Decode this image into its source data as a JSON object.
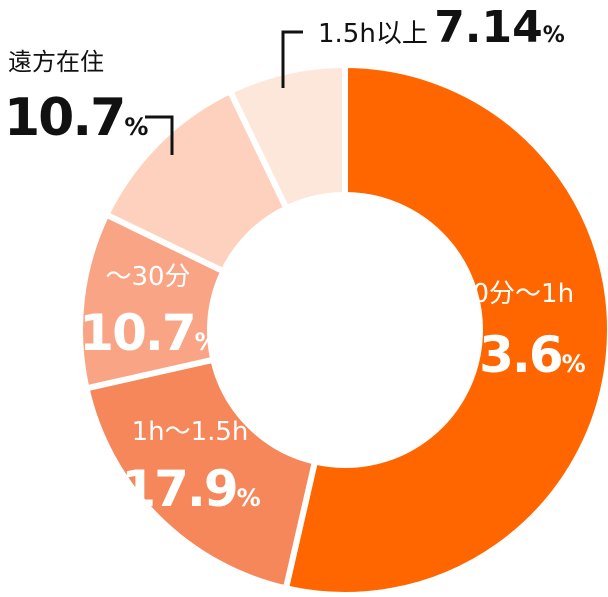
{
  "chart_data": {
    "type": "pie",
    "title": "",
    "categories": [
      "30分〜1h",
      "1h〜1.5h",
      "〜30分",
      "遠方在住",
      "1.5h以上"
    ],
    "values": [
      53.6,
      17.9,
      10.7,
      10.7,
      7.14
    ],
    "unit": "%",
    "value_labels": [
      "53.6",
      "17.9",
      "10.7",
      "10.7",
      "7.14"
    ],
    "colors": [
      "#ff6600",
      "#f5875a",
      "#f9a585",
      "#fdd1be",
      "#fde6da"
    ],
    "label_colors": [
      "#ffffff",
      "#ffffff",
      "#ffffff",
      "#111111",
      "#111111"
    ],
    "legend": "none",
    "donut": true
  }
}
